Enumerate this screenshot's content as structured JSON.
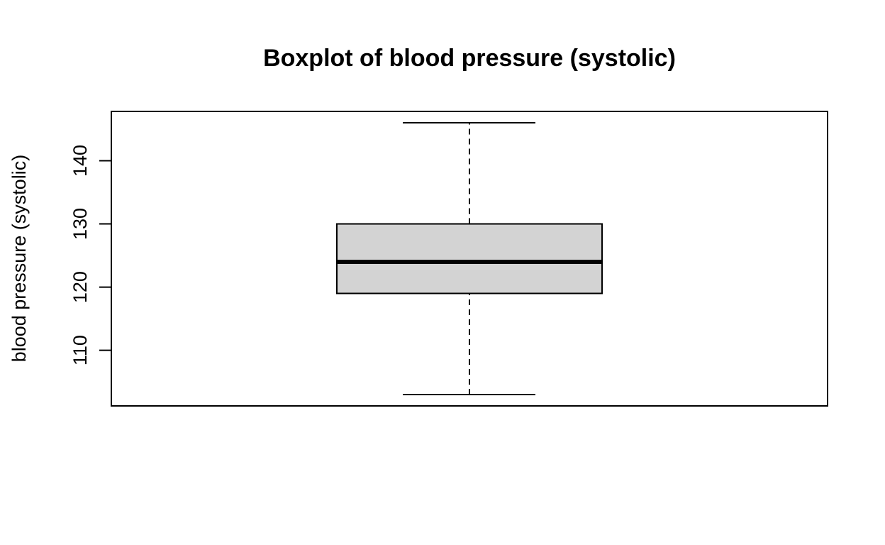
{
  "chart_data": {
    "type": "box",
    "title": "Boxplot of blood pressure (systolic)",
    "xlabel": "",
    "ylabel": "blood pressure (systolic)",
    "ylim": [
      101.2,
      147.8
    ],
    "yticks": [
      110,
      120,
      130,
      140
    ],
    "ytick_labels": [
      "110",
      "120",
      "130",
      "140"
    ],
    "grid": false,
    "legend": "none",
    "box": {
      "whisker_low": 103,
      "q1": 119,
      "median": 124,
      "q3": 130,
      "whisker_high": 146
    },
    "colors": {
      "box_fill": "#d3d3d3",
      "stroke": "#000000",
      "background": "#ffffff"
    }
  }
}
